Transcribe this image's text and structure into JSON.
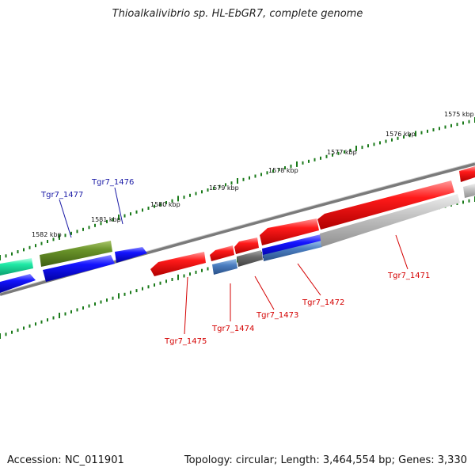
{
  "title": "Thioalkalivibrio sp. HL-EbGR7, complete genome",
  "footer": {
    "accession": "Accession: NC_011901",
    "info": "Topology: circular; Length: 3,464,554 bp; Genes: 3,330"
  },
  "scale_labels": [
    "1582 kbp",
    "1581 kbp",
    "1580 kbp",
    "1579 kbp",
    "1578 kbp",
    "1577 kbp",
    "1576 kbp",
    "1575 kbp"
  ],
  "gene_labels": [
    "Tgr7_1477",
    "Tgr7_1476",
    "Tgr7_1475",
    "Tgr7_1474",
    "Tgr7_1473",
    "Tgr7_1472",
    "Tgr7_1471"
  ],
  "colors": {
    "red": "#e00000",
    "blue": "#1010e0",
    "olive": "#5f8a1e",
    "teal": "#1fe6a0",
    "steel": "#4a78b8",
    "gray": "#b8b8b8",
    "dark_gray": "#6a6a6a",
    "tick_green": "#1a7a1a"
  }
}
